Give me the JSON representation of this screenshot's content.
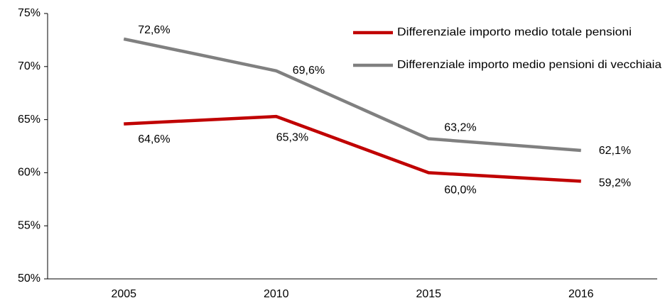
{
  "chart_data": {
    "type": "line",
    "categories": [
      "2005",
      "2010",
      "2015",
      "2016"
    ],
    "series": [
      {
        "name": "Differenziale importo medio totale pensioni",
        "color": "#c00000",
        "values": [
          64.6,
          65.3,
          60.0,
          59.2
        ],
        "value_labels": [
          "64,6%",
          "65,3%",
          "60,0%",
          "59,2%"
        ]
      },
      {
        "name": "Differenziale importo medio pensioni di vecchiaia",
        "color": "#808080",
        "values": [
          72.6,
          69.6,
          63.2,
          62.1
        ],
        "value_labels": [
          "72,6%",
          "69,6%",
          "63,2%",
          "62,1%"
        ]
      }
    ],
    "ylim": [
      50,
      75
    ],
    "yticks": [
      {
        "value": 50,
        "label": "50%"
      },
      {
        "value": 55,
        "label": "55%"
      },
      {
        "value": 60,
        "label": "60%"
      },
      {
        "value": 65,
        "label": "65%"
      },
      {
        "value": 70,
        "label": "70%"
      },
      {
        "value": 75,
        "label": "75%"
      }
    ],
    "grid": false,
    "legend": "upper right"
  }
}
